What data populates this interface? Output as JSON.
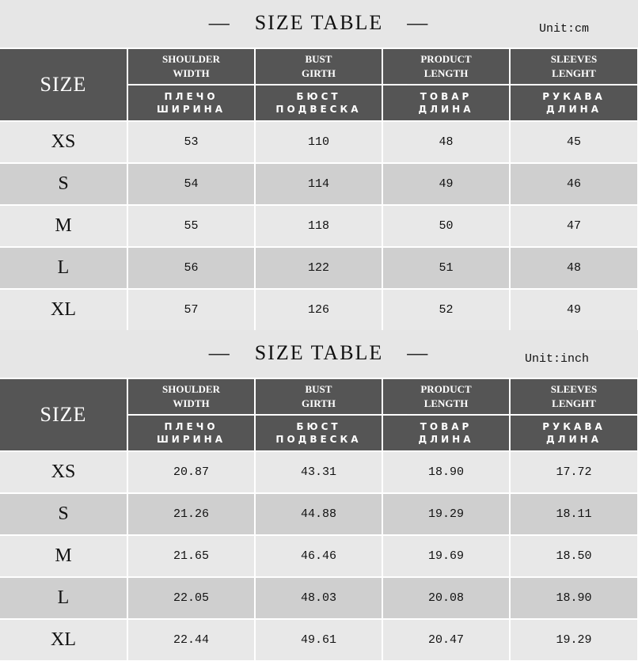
{
  "tables": [
    {
      "title": "SIZE TABLE",
      "dash": "—",
      "unit": "Unit:cm",
      "size_header": "SIZE",
      "columns": [
        {
          "en": "SHOULDER\nWIDTH",
          "ru": "ПЛЕЧО\nШИРИНА"
        },
        {
          "en": "BUST\nGIRTH",
          "ru": "БЮСТ\nПОДВЕСКА"
        },
        {
          "en": "PRODUCT\nLENGTH",
          "ru": "ТОВАР\nДЛИНА"
        },
        {
          "en": "SLEEVES\nLENGHT",
          "ru": "РУКАВА\nДЛИНА"
        }
      ],
      "rows": [
        [
          "XS",
          "53",
          "110",
          "48",
          "45"
        ],
        [
          "S",
          "54",
          "114",
          "49",
          "46"
        ],
        [
          "M",
          "55",
          "118",
          "50",
          "47"
        ],
        [
          "L",
          "56",
          "122",
          "51",
          "48"
        ],
        [
          "XL",
          "57",
          "126",
          "52",
          "49"
        ]
      ]
    },
    {
      "title": "SIZE TABLE",
      "dash": "—",
      "unit": "Unit:inch",
      "size_header": "SIZE",
      "columns": [
        {
          "en": "SHOULDER\nWIDTH",
          "ru": "ПЛЕЧО\nШИРИНА"
        },
        {
          "en": "BUST\nGIRTH",
          "ru": "БЮСТ\nПОДВЕСКА"
        },
        {
          "en": "PRODUCT\nLENGTH",
          "ru": "ТОВАР\nДЛИНА"
        },
        {
          "en": "SLEEVES\nLENGHT",
          "ru": "РУКАВА\nДЛИНА"
        }
      ],
      "rows": [
        [
          "XS",
          "20.87",
          "43.31",
          "18.90",
          "17.72"
        ],
        [
          "S",
          "21.26",
          "44.88",
          "19.29",
          "18.11"
        ],
        [
          "M",
          "21.65",
          "46.46",
          "19.69",
          "18.50"
        ],
        [
          "L",
          "22.05",
          "48.03",
          "20.08",
          "18.90"
        ],
        [
          "XL",
          "22.44",
          "49.61",
          "20.47",
          "19.29"
        ]
      ]
    }
  ],
  "colors": {
    "header": "#555555",
    "row_light": "#e8e8e8",
    "row_dark": "#cfcfcf",
    "title_bg": "#e6e6e6"
  }
}
